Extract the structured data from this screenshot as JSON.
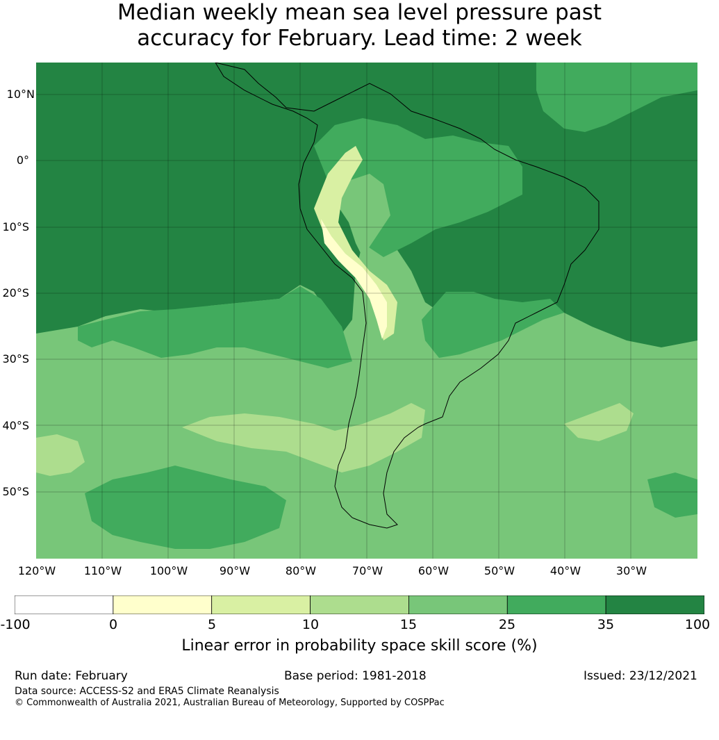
{
  "title_line1": "Median weekly mean sea level pressure past",
  "title_line2": "accuracy for February. Lead time: 2 week",
  "lat_labels": [
    "10°N",
    "0°",
    "10°S",
    "20°S",
    "30°S",
    "40°S",
    "50°S"
  ],
  "lon_labels": [
    "120°W",
    "110°W",
    "100°W",
    "90°W",
    "80°W",
    "70°W",
    "60°W",
    "50°W",
    "40°W",
    "30°W"
  ],
  "colorbar": {
    "ticks": [
      "-100",
      "0",
      "5",
      "10",
      "15",
      "25",
      "35",
      "100"
    ],
    "colors": [
      "#ffffff",
      "#ffffcc",
      "#d9f0a3",
      "#addd8e",
      "#78c679",
      "#41ab5d",
      "#238443"
    ],
    "label": "Linear error in probability space skill score (%)"
  },
  "footer": {
    "run_date": "Run date: February",
    "base_period": "Base period: 1981-2018",
    "issued": "Issued: 23/12/2021",
    "data_source": "Data source: ACCESS-S2 and ERA5 Climate Reanalysis",
    "copyright": "© Commonwealth of Australia 2021, Australian Bureau of Meteorology, Supported by COSPPac"
  }
}
